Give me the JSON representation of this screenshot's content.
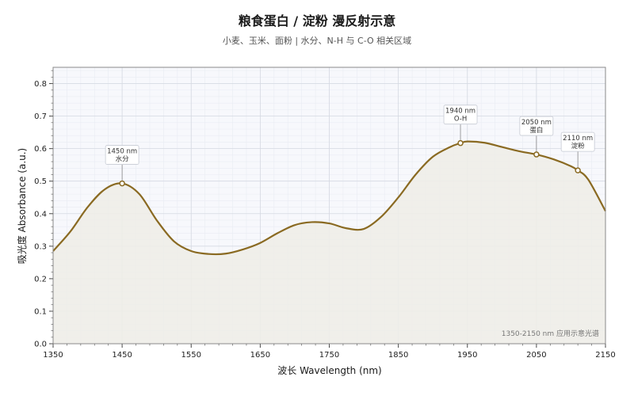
{
  "chart_data": {
    "type": "area",
    "title": "粮食蛋白 / 淀粉  漫反射示意",
    "subtitle": "小麦、玉米、面粉 | 水分、N-H 与 C-O 相关区域",
    "xlabel": "波长 Wavelength (nm)",
    "ylabel": "吸光度 Absorbance (a.u.)",
    "xlim": [
      1350,
      2150
    ],
    "ylim": [
      0,
      0.85
    ],
    "x_ticks": [
      1350,
      1450,
      1550,
      1650,
      1750,
      1850,
      1950,
      2050,
      2150
    ],
    "y_ticks": [
      0.0,
      0.1,
      0.2,
      0.3,
      0.4,
      0.5,
      0.6,
      0.7,
      0.8
    ],
    "grid": true,
    "line_color": "#8a6a22",
    "fill_color": "#eeede8",
    "series": [
      {
        "x": [
          1350,
          1375,
          1400,
          1425,
          1450,
          1475,
          1500,
          1525,
          1550,
          1575,
          1600,
          1625,
          1650,
          1675,
          1700,
          1725,
          1750,
          1775,
          1800,
          1825,
          1850,
          1875,
          1900,
          1925,
          1940,
          1950,
          1975,
          2000,
          2025,
          2050,
          2075,
          2100,
          2110,
          2125,
          2150
        ],
        "y": [
          0.285,
          0.345,
          0.42,
          0.475,
          0.493,
          0.46,
          0.38,
          0.315,
          0.285,
          0.276,
          0.277,
          0.29,
          0.31,
          0.34,
          0.365,
          0.374,
          0.37,
          0.355,
          0.353,
          0.39,
          0.45,
          0.52,
          0.575,
          0.605,
          0.617,
          0.622,
          0.618,
          0.605,
          0.592,
          0.582,
          0.567,
          0.546,
          0.533,
          0.505,
          0.408
        ]
      }
    ],
    "annotations": [
      {
        "x": 1450,
        "y": 0.493,
        "label": "1450 nm",
        "sub": "水分"
      },
      {
        "x": 1940,
        "y": 0.617,
        "label": "1940 nm",
        "sub": "O-H"
      },
      {
        "x": 2050,
        "y": 0.582,
        "label": "2050 nm",
        "sub": "蛋白"
      },
      {
        "x": 2110,
        "y": 0.533,
        "label": "2110 nm",
        "sub": "淀粉"
      }
    ],
    "note": "1350-2150 nm 应用示意光谱"
  }
}
